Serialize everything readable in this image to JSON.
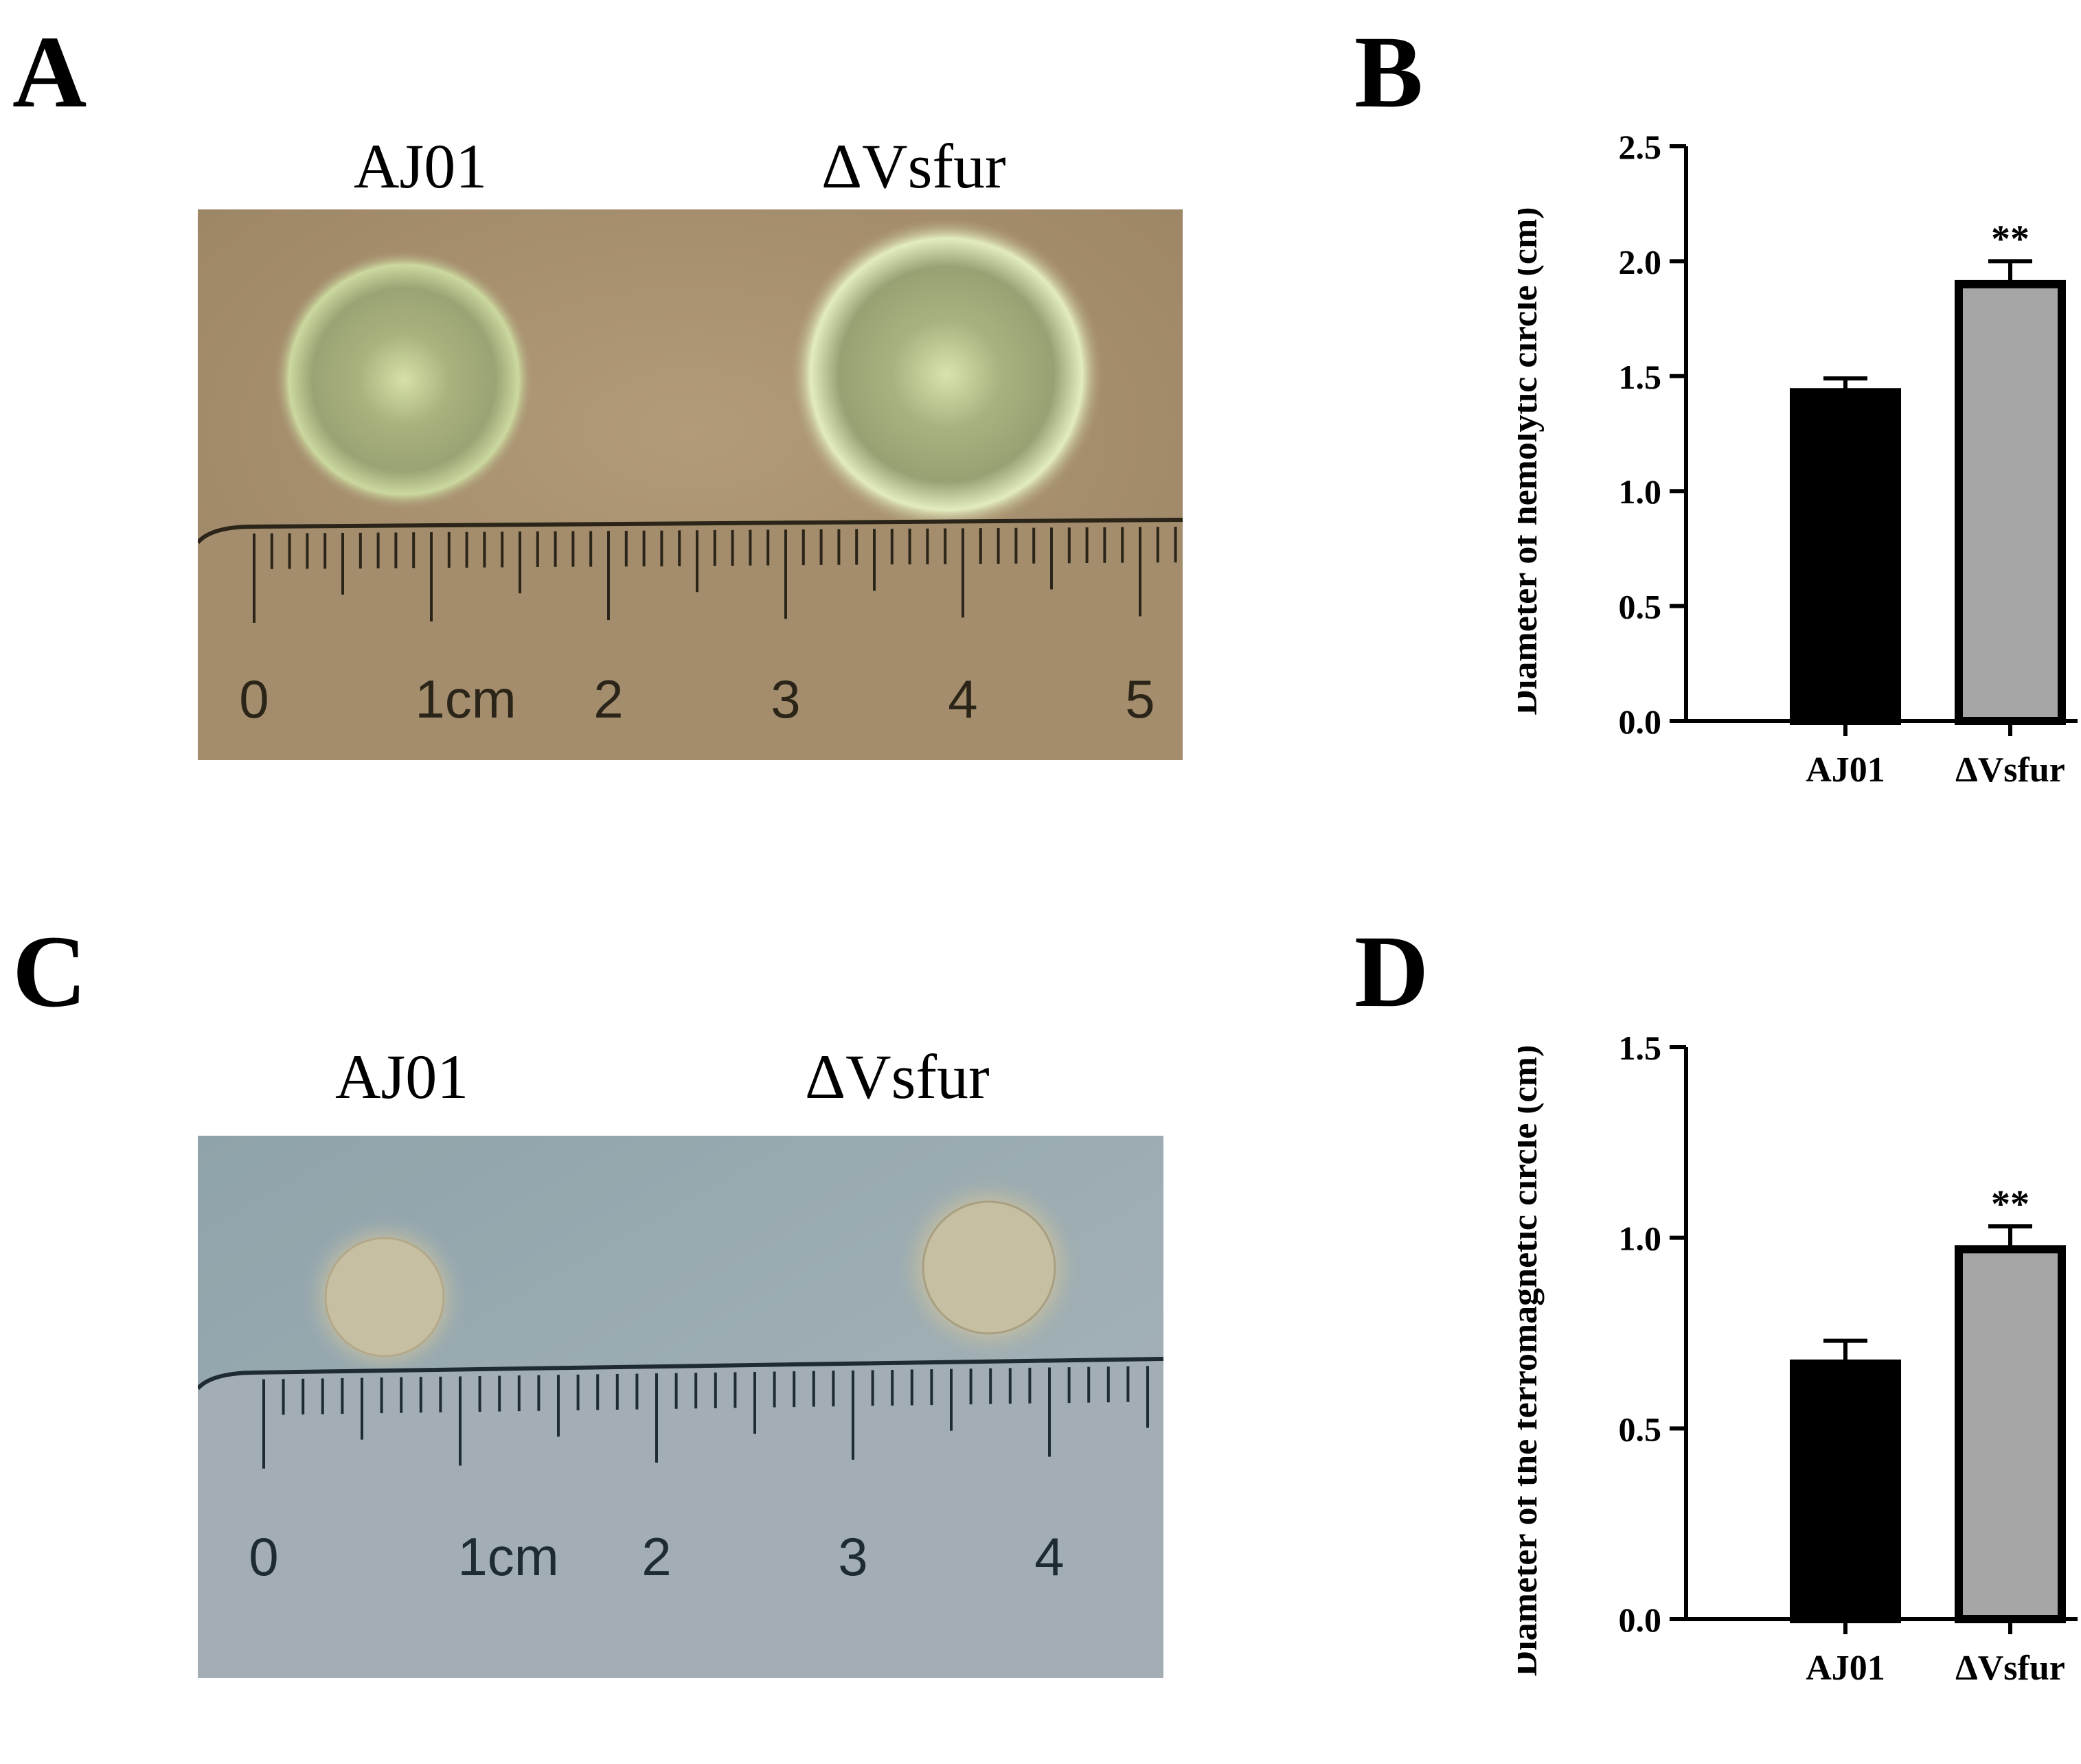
{
  "panels": {
    "A": {
      "letter": "A",
      "labels": [
        "AJ01",
        "ΔVsfur"
      ],
      "ruler_labels": [
        "0",
        "1cm",
        "2",
        "3",
        "4",
        "5"
      ],
      "colors": {
        "plate": "#a79170",
        "halo": "#d9e4b0",
        "ruler": "#2b2418"
      }
    },
    "C": {
      "letter": "C",
      "labels": [
        "AJ01",
        "ΔVsfur"
      ],
      "ruler_labels": [
        "0",
        "1cm",
        "2",
        "3",
        "4"
      ],
      "colors": {
        "plate": "#9aaab0",
        "colony": "#c8c0a2",
        "ruler": "#1f2b33"
      }
    }
  },
  "chart_data": [
    {
      "panel_letter": "B",
      "type": "bar",
      "categories": [
        "AJ01",
        "ΔVsfur"
      ],
      "values": [
        1.43,
        1.9
      ],
      "errors": [
        0.06,
        0.1
      ],
      "significance": [
        "",
        "**"
      ],
      "ylabel": "Diameter of hemolytic circle (cm)",
      "xlabel": "",
      "ylim": [
        0,
        2.5
      ],
      "yticks": [
        "0.0",
        "0.5",
        "1.0",
        "1.5",
        "2.0",
        "2.5"
      ],
      "bar_colors": [
        "#000000",
        "#a6a6a6"
      ],
      "grid": false
    },
    {
      "panel_letter": "D",
      "type": "bar",
      "categories": [
        "AJ01",
        "ΔVsfur"
      ],
      "values": [
        0.67,
        0.97
      ],
      "errors": [
        0.06,
        0.06
      ],
      "significance": [
        "",
        "**"
      ],
      "ylabel": "Diameter of the ferromagnetic circle (cm)",
      "xlabel": "",
      "ylim": [
        0,
        1.5
      ],
      "yticks": [
        "0.0",
        "0.5",
        "1.0",
        "1.5"
      ],
      "bar_colors": [
        "#000000",
        "#a6a6a6"
      ],
      "grid": false
    }
  ]
}
